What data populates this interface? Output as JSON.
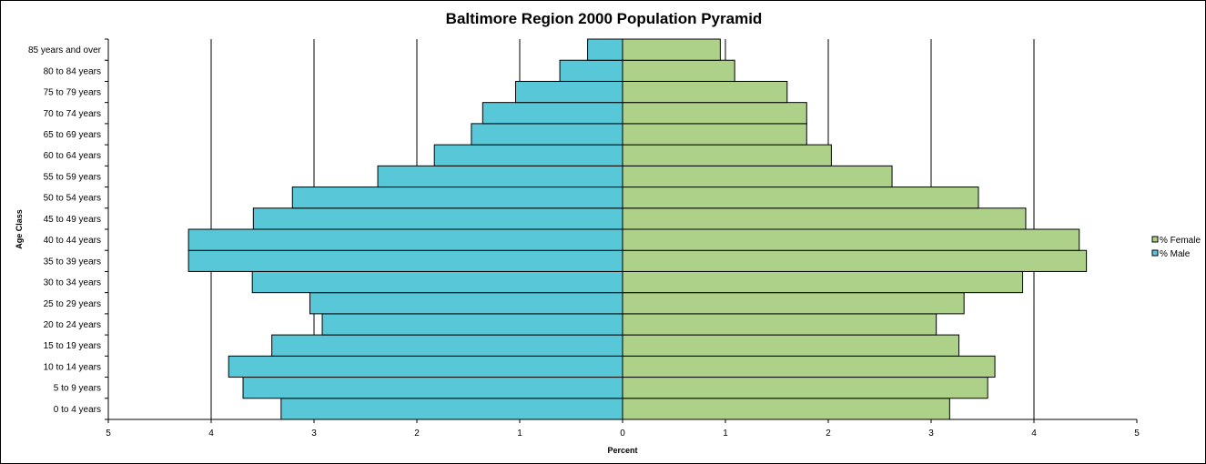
{
  "chart_data": {
    "type": "bar",
    "orientation": "horizontal",
    "title": "Baltimore Region 2000 Population Pyramid",
    "xlabel": "Percent",
    "ylabel": "Age Class",
    "xlim": [
      -5,
      5
    ],
    "x_ticks": [
      "5",
      "4",
      "3",
      "2",
      "1",
      "0",
      "1",
      "2",
      "3",
      "4",
      "5"
    ],
    "grid": "vertical",
    "legend_position": "right",
    "categories": [
      "0 to 4 years",
      "5 to 9 years",
      "10 to 14 years",
      "15 to 19 years",
      "20 to 24 years",
      "25 to 29 years",
      "30 to 34 years",
      "35 to 39 years",
      "40 to 44 years",
      "45 to 49 years",
      "50 to 54 years",
      "55 to 59 years",
      "60 to 64 years",
      "65 to 69 years",
      "70 to 74 years",
      "75 to 79 years",
      "80 to 84 years",
      "85 years and over"
    ],
    "series": [
      {
        "name": "% Female",
        "color": "#aed18a",
        "values": [
          3.18,
          3.55,
          3.62,
          3.27,
          3.05,
          3.32,
          3.89,
          4.51,
          4.44,
          3.92,
          3.46,
          2.62,
          2.03,
          1.79,
          1.79,
          1.6,
          1.09,
          0.95
        ]
      },
      {
        "name": "% Male",
        "color": "#58c8d9",
        "values": [
          3.32,
          3.69,
          3.83,
          3.41,
          2.92,
          3.04,
          3.6,
          4.22,
          4.22,
          3.59,
          3.21,
          2.38,
          1.83,
          1.47,
          1.36,
          1.04,
          0.61,
          0.34
        ]
      }
    ]
  }
}
